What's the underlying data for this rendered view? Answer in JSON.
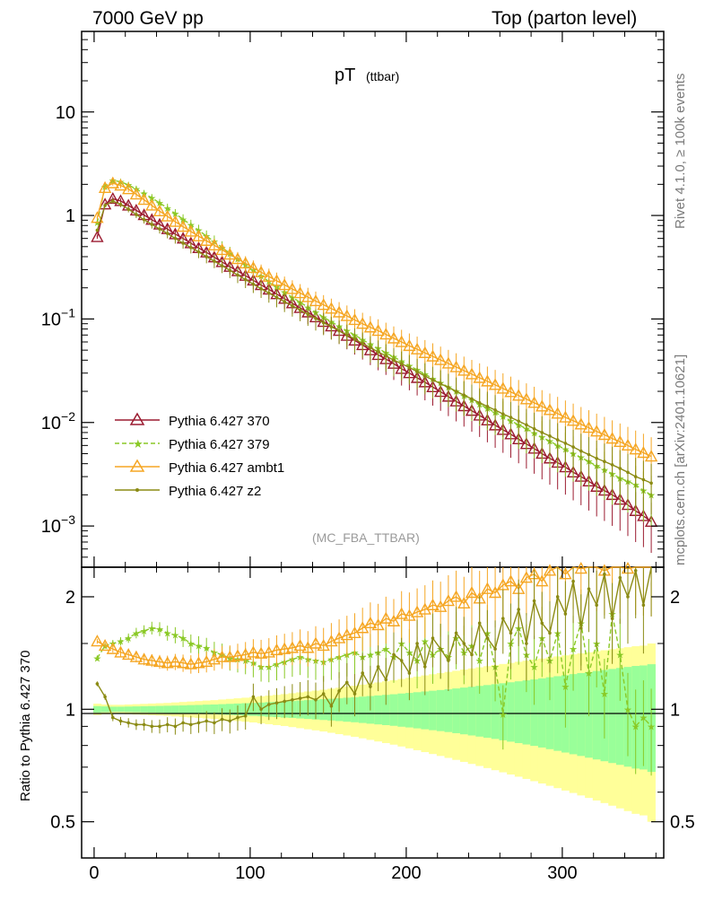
{
  "header": {
    "left": "7000 GeV pp",
    "right": "Top (parton level)"
  },
  "side_labels": {
    "rivet": "Rivet 4.1.0, ≥ 100k events",
    "mcplots": "mcplots.cern.ch [arXiv:2401.10621]"
  },
  "chart_data": {
    "type": "line",
    "title": "pT",
    "subtitle": "(ttbar)",
    "analysis_tag": "(MC_FBA_TTBAR)",
    "xlabel": "",
    "ylabel": "",
    "ratio_ylabel": "Ratio to Pythia 6.427 370",
    "xlim": [
      -8,
      365
    ],
    "ylim": [
      0.0004,
      60
    ],
    "yscale": "log",
    "ratio_ylim": [
      0.4,
      2.4
    ],
    "x_ticks": [
      0,
      100,
      200,
      300
    ],
    "y_ticks": [
      {
        "value": 0.001,
        "base": "10",
        "exp": "−3"
      },
      {
        "value": 0.01,
        "base": "10",
        "exp": "−2"
      },
      {
        "value": 0.1,
        "base": "10",
        "exp": "−1"
      },
      {
        "value": 1,
        "base": "1",
        "exp": ""
      },
      {
        "value": 10,
        "base": "10",
        "exp": ""
      }
    ],
    "ratio_ticks": [
      "0.5",
      "1",
      "2"
    ],
    "legend_position": "lower-left",
    "x": [
      2,
      7,
      12,
      17,
      22,
      27,
      32,
      37,
      42,
      47,
      52,
      57,
      62,
      67,
      72,
      77,
      82,
      87,
      92,
      97,
      102,
      107,
      112,
      117,
      122,
      127,
      132,
      137,
      142,
      147,
      152,
      157,
      162,
      167,
      172,
      177,
      182,
      187,
      192,
      197,
      202,
      207,
      212,
      217,
      222,
      227,
      232,
      237,
      242,
      247,
      252,
      257,
      262,
      267,
      272,
      277,
      282,
      287,
      292,
      297,
      302,
      307,
      312,
      317,
      322,
      327,
      332,
      337,
      342,
      347,
      352,
      357
    ],
    "series": [
      {
        "name": "Pythia 6.427 370",
        "color": "#9b1b30",
        "marker": "triangle-open",
        "dash": "solid",
        "values": [
          0.62,
          1.28,
          1.45,
          1.38,
          1.25,
          1.12,
          1.01,
          0.91,
          0.82,
          0.74,
          0.66,
          0.6,
          0.54,
          0.485,
          0.44,
          0.395,
          0.355,
          0.32,
          0.29,
          0.262,
          0.236,
          0.213,
          0.193,
          0.174,
          0.157,
          0.142,
          0.128,
          0.116,
          0.104,
          0.094,
          0.085,
          0.077,
          0.069,
          0.062,
          0.056,
          0.05,
          0.045,
          0.041,
          0.037,
          0.033,
          0.03,
          0.027,
          0.0245,
          0.022,
          0.0198,
          0.0178,
          0.016,
          0.0144,
          0.013,
          0.0117,
          0.0105,
          0.0094,
          0.0085,
          0.0077,
          0.0069,
          0.0062,
          0.0056,
          0.005,
          0.0045,
          0.0041,
          0.0037,
          0.0033,
          0.003,
          0.0027,
          0.0024,
          0.0022,
          0.002,
          0.0018,
          0.0016,
          0.0014,
          0.00125,
          0.0011
        ]
      },
      {
        "name": "Pythia 6.427 379",
        "color": "#8ac926",
        "marker": "star",
        "dash": "dashed",
        "values": [
          0.85,
          1.9,
          2.18,
          2.12,
          1.97,
          1.8,
          1.63,
          1.48,
          1.32,
          1.18,
          1.04,
          0.92,
          0.81,
          0.72,
          0.63,
          0.56,
          0.49,
          0.43,
          0.38,
          0.335,
          0.295,
          0.26,
          0.23,
          0.204,
          0.181,
          0.162,
          0.145,
          0.13,
          0.116,
          0.104,
          0.094,
          0.085,
          0.077,
          0.07,
          0.063,
          0.057,
          0.052,
          0.047,
          0.043,
          0.039,
          0.0355,
          0.0322,
          0.0293,
          0.0266,
          0.0242,
          0.022,
          0.02,
          0.0182,
          0.0165,
          0.015,
          0.0137,
          0.0125,
          0.0114,
          0.0104,
          0.0095,
          0.0087,
          0.0079,
          0.0072,
          0.0066,
          0.006,
          0.0055,
          0.005,
          0.0046,
          0.0042,
          0.0038,
          0.0035,
          0.0032,
          0.0029,
          0.0027,
          0.0025,
          0.0022,
          0.002
        ]
      },
      {
        "name": "Pythia 6.427 ambt1",
        "color": "#f5a623",
        "marker": "triangle-open",
        "dash": "solid",
        "values": [
          0.95,
          1.85,
          2.05,
          1.95,
          1.8,
          1.6,
          1.42,
          1.25,
          1.1,
          0.98,
          0.87,
          0.78,
          0.7,
          0.63,
          0.57,
          0.515,
          0.465,
          0.42,
          0.38,
          0.345,
          0.312,
          0.283,
          0.257,
          0.234,
          0.213,
          0.195,
          0.178,
          0.163,
          0.149,
          0.137,
          0.126,
          0.116,
          0.107,
          0.098,
          0.09,
          0.083,
          0.077,
          0.071,
          0.065,
          0.06,
          0.055,
          0.051,
          0.047,
          0.0435,
          0.0402,
          0.0372,
          0.0343,
          0.0317,
          0.0293,
          0.027,
          0.025,
          0.0231,
          0.0213,
          0.0197,
          0.0182,
          0.0168,
          0.0155,
          0.0143,
          0.0132,
          0.0122,
          0.0112,
          0.0104,
          0.0096,
          0.0089,
          0.0082,
          0.0076,
          0.007,
          0.0065,
          0.006,
          0.0055,
          0.0051,
          0.0047
        ]
      },
      {
        "name": "Pythia 6.427 z2",
        "color": "#8b8b14",
        "marker": "dot",
        "dash": "solid",
        "values": [
          0.72,
          1.25,
          1.38,
          1.28,
          1.15,
          1.02,
          0.91,
          0.82,
          0.74,
          0.67,
          0.6,
          0.54,
          0.49,
          0.445,
          0.4,
          0.362,
          0.327,
          0.295,
          0.266,
          0.24,
          0.217,
          0.196,
          0.178,
          0.162,
          0.147,
          0.134,
          0.122,
          0.111,
          0.101,
          0.092,
          0.084,
          0.077,
          0.07,
          0.064,
          0.058,
          0.053,
          0.048,
          0.044,
          0.04,
          0.037,
          0.034,
          0.031,
          0.028,
          0.0258,
          0.0237,
          0.0218,
          0.02,
          0.0184,
          0.0169,
          0.0155,
          0.0143,
          0.0132,
          0.0121,
          0.0112,
          0.0103,
          0.0095,
          0.0087,
          0.008,
          0.0074,
          0.0068,
          0.0063,
          0.0058,
          0.0053,
          0.0049,
          0.0045,
          0.0042,
          0.0039,
          0.0036,
          0.0033,
          0.003,
          0.0028,
          0.0026
        ]
      }
    ],
    "ratio_series": [
      {
        "name": "Pythia 6.427 379",
        "values": [
          1.37,
          1.48,
          1.5,
          1.52,
          1.55,
          1.6,
          1.62,
          1.65,
          1.64,
          1.6,
          1.58,
          1.55,
          1.5,
          1.48,
          1.46,
          1.42,
          1.4,
          1.37,
          1.36,
          1.35,
          1.33,
          1.3,
          1.3,
          1.32,
          1.34,
          1.36,
          1.38,
          1.36,
          1.35,
          1.34,
          1.36,
          1.38,
          1.4,
          1.42,
          1.38,
          1.4,
          1.42,
          1.45,
          1.38,
          1.5,
          1.42,
          1.35,
          1.52,
          1.4,
          1.45,
          1.38,
          1.55,
          1.42,
          1.48,
          1.35,
          1.6,
          1.3,
          0.97,
          1.5,
          1.65,
          1.4,
          1.3,
          1.55,
          1.35,
          1.6,
          1.15,
          1.45,
          1.7,
          1.25,
          1.5,
          1.1,
          1.8,
          1.4,
          1.0,
          0.9,
          0.95,
          0.9
        ]
      },
      {
        "name": "Pythia 6.427 ambt1",
        "values": [
          1.52,
          1.48,
          1.45,
          1.42,
          1.4,
          1.38,
          1.36,
          1.35,
          1.34,
          1.33,
          1.34,
          1.33,
          1.32,
          1.33,
          1.34,
          1.36,
          1.38,
          1.38,
          1.39,
          1.4,
          1.42,
          1.41,
          1.42,
          1.44,
          1.45,
          1.46,
          1.48,
          1.46,
          1.5,
          1.48,
          1.52,
          1.55,
          1.58,
          1.6,
          1.65,
          1.7,
          1.68,
          1.75,
          1.72,
          1.8,
          1.78,
          1.82,
          1.85,
          1.9,
          1.88,
          1.95,
          2.0,
          1.92,
          2.05,
          1.98,
          2.1,
          2.05,
          2.15,
          2.2,
          2.1,
          2.25,
          2.3,
          2.2,
          2.35,
          2.4,
          2.3,
          2.4,
          2.38,
          2.4,
          2.4,
          2.35,
          2.4,
          2.4,
          2.38,
          2.4,
          2.4,
          2.4
        ]
      },
      {
        "name": "Pythia 6.427 z2",
        "values": [
          1.17,
          1.08,
          0.95,
          0.93,
          0.92,
          0.91,
          0.91,
          0.9,
          0.9,
          0.91,
          0.9,
          0.92,
          0.91,
          0.92,
          0.93,
          0.92,
          0.94,
          0.93,
          0.95,
          0.96,
          1.08,
          1.0,
          1.03,
          1.04,
          1.05,
          1.06,
          1.07,
          1.08,
          1.06,
          1.1,
          1.02,
          1.12,
          1.18,
          1.1,
          1.25,
          1.15,
          1.3,
          1.2,
          1.4,
          1.35,
          1.25,
          1.5,
          1.3,
          1.55,
          1.45,
          1.35,
          1.6,
          1.5,
          1.4,
          1.7,
          1.55,
          1.45,
          1.75,
          1.6,
          1.85,
          1.5,
          1.95,
          1.7,
          1.6,
          2.0,
          1.8,
          2.2,
          1.65,
          2.1,
          1.9,
          2.3,
          1.75,
          2.25,
          2.0,
          2.35,
          1.9,
          2.4
        ]
      }
    ],
    "ratio_band_inner": [
      0.02,
      0.018,
      0.016,
      0.016,
      0.017,
      0.018,
      0.019,
      0.02,
      0.021,
      0.022,
      0.023,
      0.024,
      0.026,
      0.027,
      0.029,
      0.03,
      0.032,
      0.034,
      0.036,
      0.038,
      0.04,
      0.042,
      0.045,
      0.047,
      0.05,
      0.052,
      0.055,
      0.058,
      0.061,
      0.064,
      0.067,
      0.07,
      0.074,
      0.077,
      0.081,
      0.085,
      0.089,
      0.093,
      0.097,
      0.102,
      0.106,
      0.111,
      0.116,
      0.121,
      0.126,
      0.131,
      0.137,
      0.143,
      0.149,
      0.155,
      0.161,
      0.167,
      0.174,
      0.181,
      0.188,
      0.195,
      0.202,
      0.21,
      0.218,
      0.226,
      0.234,
      0.242,
      0.25,
      0.258,
      0.266,
      0.274,
      0.282,
      0.29,
      0.298,
      0.306,
      0.31,
      0.32
    ],
    "ratio_band_outer": [
      0.035,
      0.03,
      0.028,
      0.028,
      0.03,
      0.032,
      0.034,
      0.036,
      0.038,
      0.04,
      0.043,
      0.046,
      0.049,
      0.052,
      0.055,
      0.058,
      0.062,
      0.066,
      0.07,
      0.074,
      0.078,
      0.083,
      0.088,
      0.093,
      0.098,
      0.104,
      0.11,
      0.116,
      0.122,
      0.128,
      0.135,
      0.142,
      0.149,
      0.156,
      0.164,
      0.172,
      0.18,
      0.188,
      0.196,
      0.205,
      0.214,
      0.223,
      0.232,
      0.241,
      0.25,
      0.259,
      0.268,
      0.277,
      0.286,
      0.295,
      0.304,
      0.313,
      0.322,
      0.331,
      0.34,
      0.349,
      0.358,
      0.367,
      0.376,
      0.385,
      0.394,
      0.403,
      0.412,
      0.421,
      0.43,
      0.439,
      0.448,
      0.457,
      0.466,
      0.475,
      0.48,
      0.5
    ]
  }
}
